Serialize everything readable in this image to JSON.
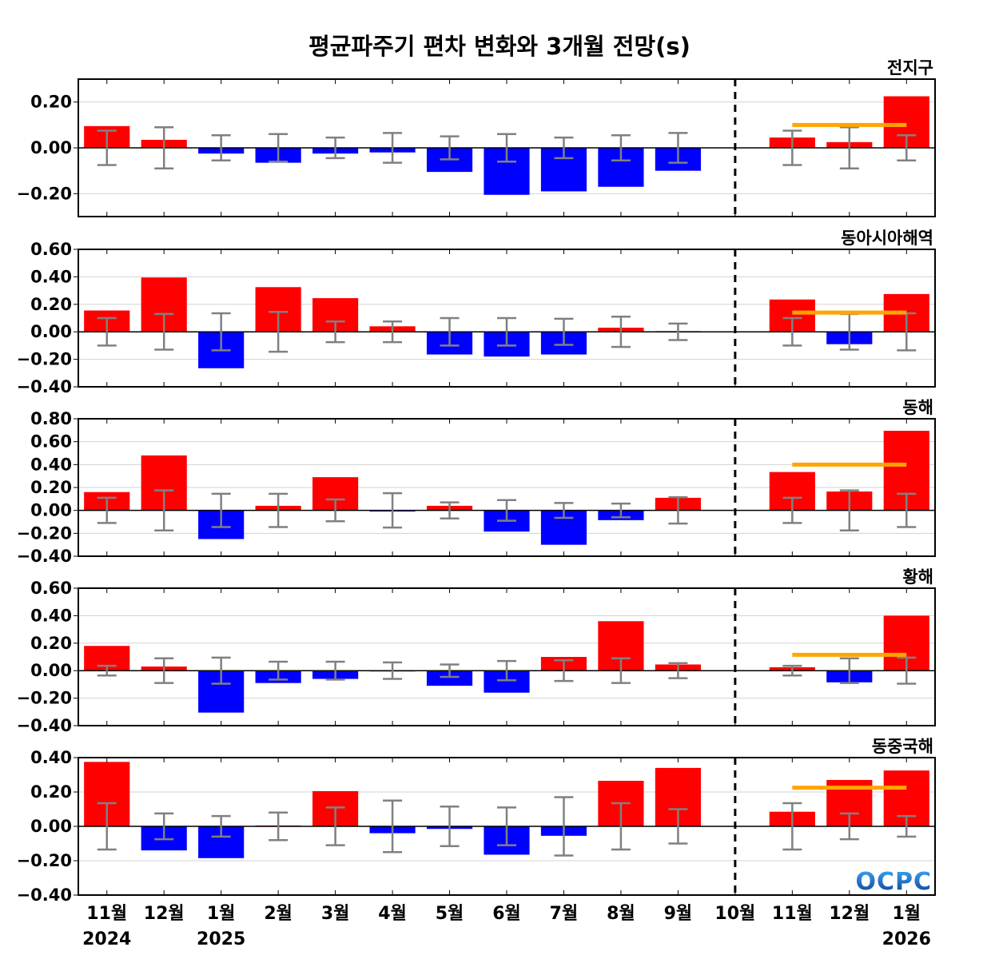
{
  "title": "평균파주기 편차 변화와 3개월 전망(s)",
  "logo_text": "OCPC",
  "colors": {
    "positive": "#ff0000",
    "negative": "#0000ff",
    "errorbar": "#808080",
    "outlook": "#ffa500",
    "divider": "#000000",
    "grid": "#d3d3d3"
  },
  "chart_data": {
    "type": "bar",
    "categories": [
      "11월",
      "12월",
      "1월",
      "2월",
      "3월",
      "4월",
      "5월",
      "6월",
      "7월",
      "8월",
      "9월",
      "10월",
      "11월",
      "12월",
      "1월"
    ],
    "year_labels": [
      {
        "index": 0,
        "text": "2024"
      },
      {
        "index": 2,
        "text": "2025"
      },
      {
        "index": 14,
        "text": "2026"
      }
    ],
    "divider_after_category_index": 11,
    "panels": [
      {
        "name": "전지구",
        "ylim": [
          -0.3,
          0.3
        ],
        "yticks": [
          -0.2,
          0.0,
          0.2
        ],
        "ytick_labels": [
          "−0.20",
          "0.00",
          "0.20"
        ],
        "values": [
          0.095,
          0.035,
          -0.025,
          -0.065,
          -0.025,
          -0.02,
          -0.105,
          -0.205,
          -0.19,
          -0.17,
          -0.1,
          0.0,
          0.045,
          0.025,
          0.225
        ],
        "error_bars": [
          0.075,
          0.09,
          0.055,
          0.06,
          0.045,
          0.065,
          0.05,
          0.06,
          0.045,
          0.055,
          0.065,
          null,
          0.075,
          0.09,
          0.055
        ],
        "outlook": {
          "value": 0.1,
          "from_index": 12,
          "to_index": 14
        }
      },
      {
        "name": "동아시아해역",
        "ylim": [
          -0.4,
          0.6
        ],
        "yticks": [
          -0.4,
          -0.2,
          0.0,
          0.2,
          0.4,
          0.6
        ],
        "ytick_labels": [
          "−0.40",
          "−0.20",
          "0.00",
          "0.20",
          "0.40",
          "0.60"
        ],
        "values": [
          0.155,
          0.395,
          -0.265,
          0.325,
          0.245,
          0.04,
          -0.165,
          -0.18,
          -0.165,
          0.03,
          0.005,
          0.0,
          0.235,
          -0.09,
          0.275
        ],
        "error_bars": [
          0.1,
          0.13,
          0.135,
          0.145,
          0.075,
          0.075,
          0.1,
          0.1,
          0.095,
          0.11,
          0.06,
          null,
          0.1,
          0.13,
          0.135
        ],
        "outlook": {
          "value": 0.14,
          "from_index": 12,
          "to_index": 14
        }
      },
      {
        "name": "동해",
        "ylim": [
          -0.4,
          0.8
        ],
        "yticks": [
          -0.4,
          -0.2,
          0.0,
          0.2,
          0.4,
          0.6,
          0.8
        ],
        "ytick_labels": [
          "−0.40",
          "−0.20",
          "0.00",
          "0.20",
          "0.40",
          "0.60",
          "0.80"
        ],
        "values": [
          0.16,
          0.48,
          -0.25,
          0.04,
          0.29,
          -0.01,
          0.04,
          -0.185,
          -0.3,
          -0.085,
          0.11,
          0.0,
          0.335,
          0.165,
          0.695
        ],
        "error_bars": [
          0.11,
          0.175,
          0.145,
          0.145,
          0.095,
          0.15,
          0.07,
          0.09,
          0.065,
          0.06,
          0.115,
          null,
          0.11,
          0.175,
          0.145
        ],
        "outlook": {
          "value": 0.4,
          "from_index": 12,
          "to_index": 14
        }
      },
      {
        "name": "황해",
        "ylim": [
          -0.4,
          0.6
        ],
        "yticks": [
          -0.4,
          -0.2,
          0.0,
          0.2,
          0.4,
          0.6
        ],
        "ytick_labels": [
          "−0.40",
          "−0.20",
          "0.00",
          "0.20",
          "0.40",
          "0.60"
        ],
        "values": [
          0.18,
          0.03,
          -0.305,
          -0.09,
          -0.06,
          -0.005,
          -0.11,
          -0.16,
          0.1,
          0.36,
          0.045,
          0.0,
          0.025,
          -0.085,
          0.4
        ],
        "error_bars": [
          0.035,
          0.09,
          0.095,
          0.065,
          0.065,
          0.06,
          0.045,
          0.07,
          0.075,
          0.09,
          0.055,
          null,
          0.035,
          0.09,
          0.095
        ],
        "outlook": {
          "value": 0.115,
          "from_index": 12,
          "to_index": 14
        }
      },
      {
        "name": "동중국해",
        "ylim": [
          -0.4,
          0.4
        ],
        "yticks": [
          -0.4,
          -0.2,
          0.0,
          0.2,
          0.4
        ],
        "ytick_labels": [
          "−0.40",
          "−0.20",
          "0.00",
          "0.20",
          "0.40"
        ],
        "values": [
          0.375,
          -0.14,
          -0.185,
          0.005,
          0.205,
          -0.04,
          -0.015,
          -0.165,
          -0.055,
          0.265,
          0.34,
          0.0,
          0.085,
          0.27,
          0.325
        ],
        "error_bars": [
          0.135,
          0.075,
          0.06,
          0.08,
          0.11,
          0.15,
          0.115,
          0.11,
          0.17,
          0.135,
          0.1,
          null,
          0.135,
          0.075,
          0.06
        ],
        "outlook": {
          "value": 0.225,
          "from_index": 12,
          "to_index": 14
        }
      }
    ]
  }
}
